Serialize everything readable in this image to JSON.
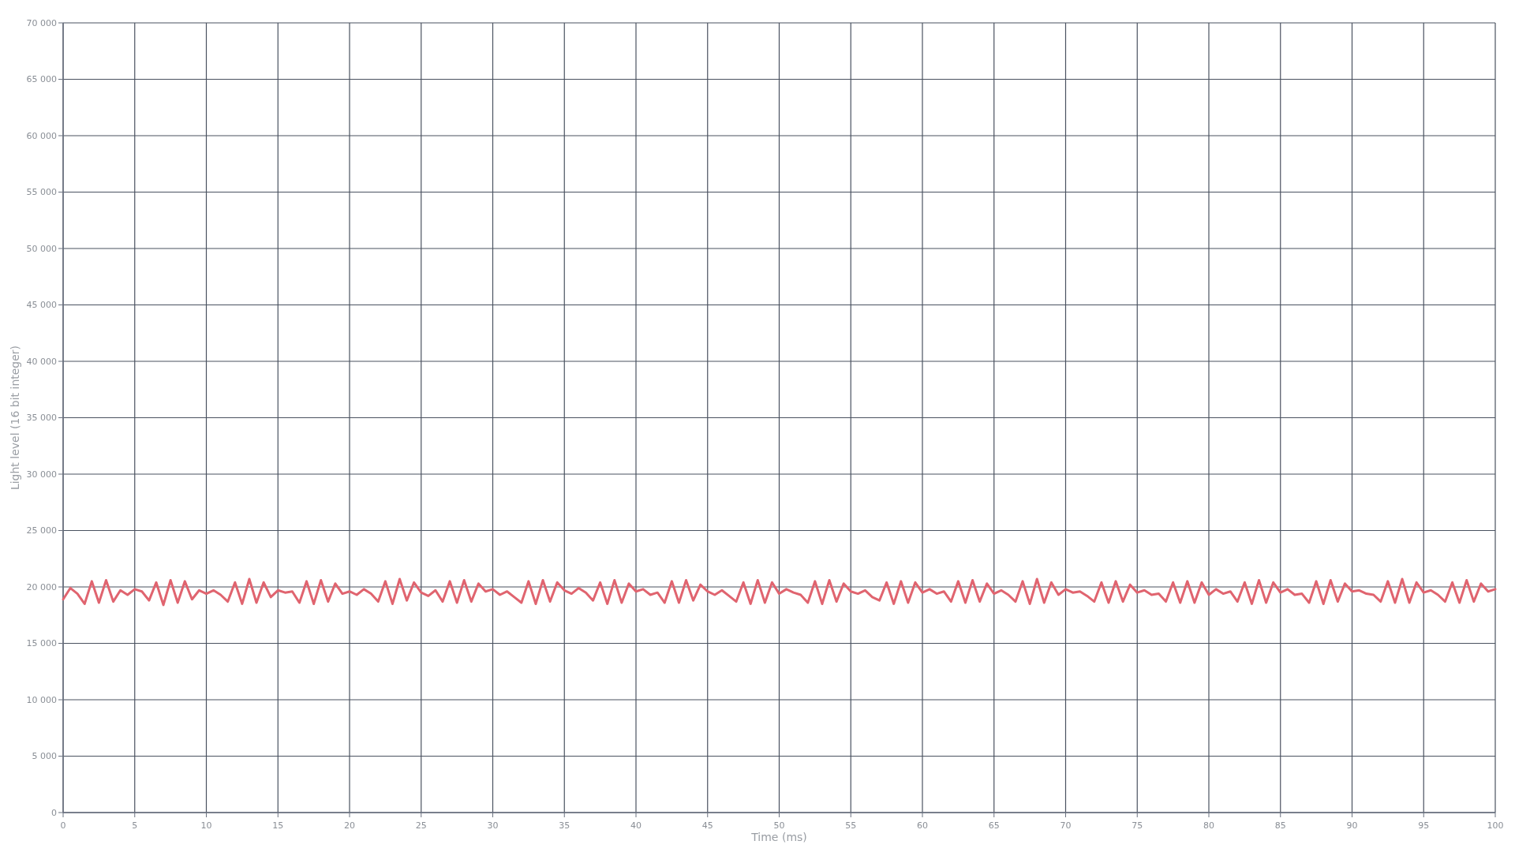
{
  "chart_data": {
    "type": "line",
    "xlabel": "Time (ms)",
    "ylabel": "Light level (16 bit integer)",
    "x": [
      0,
      0.5,
      1,
      1.5,
      2,
      2.5,
      3,
      3.5,
      4,
      4.5,
      5,
      5.5,
      6,
      6.5,
      7,
      7.5,
      8,
      8.5,
      9,
      9.5,
      10,
      10.5,
      11,
      11.5,
      12,
      12.5,
      13,
      13.5,
      14,
      14.5,
      15,
      15.5,
      16,
      16.5,
      17,
      17.5,
      18,
      18.5,
      19,
      19.5,
      20,
      20.5,
      21,
      21.5,
      22,
      22.5,
      23,
      23.5,
      24,
      24.5,
      25,
      25.5,
      26,
      26.5,
      27,
      27.5,
      28,
      28.5,
      29,
      29.5,
      30,
      30.5,
      31,
      31.5,
      32,
      32.5,
      33,
      33.5,
      34,
      34.5,
      35,
      35.5,
      36,
      36.5,
      37,
      37.5,
      38,
      38.5,
      39,
      39.5,
      40,
      40.5,
      41,
      41.5,
      42,
      42.5,
      43,
      43.5,
      44,
      44.5,
      45,
      45.5,
      46,
      46.5,
      47,
      47.5,
      48,
      48.5,
      49,
      49.5,
      50,
      50.5,
      51,
      51.5,
      52,
      52.5,
      53,
      53.5,
      54,
      54.5,
      55,
      55.5,
      56,
      56.5,
      57,
      57.5,
      58,
      58.5,
      59,
      59.5,
      60,
      60.5,
      61,
      61.5,
      62,
      62.5,
      63,
      63.5,
      64,
      64.5,
      65,
      65.5,
      66,
      66.5,
      67,
      67.5,
      68,
      68.5,
      69,
      69.5,
      70,
      70.5,
      71,
      71.5,
      72,
      72.5,
      73,
      73.5,
      74,
      74.5,
      75,
      75.5,
      76,
      76.5,
      77,
      77.5,
      78,
      78.5,
      79,
      79.5,
      80,
      80.5,
      81,
      81.5,
      82,
      82.5,
      83,
      83.5,
      84,
      84.5,
      85,
      85.5,
      86,
      86.5,
      87,
      87.5,
      88,
      88.5,
      89,
      89.5,
      90,
      90.5,
      91,
      91.5,
      92,
      92.5,
      93,
      93.5,
      94,
      94.5,
      95,
      95.5,
      96,
      96.5,
      97,
      97.5,
      98,
      98.5,
      99,
      99.5,
      100
    ],
    "series": [
      {
        "color": "#e0646f",
        "values": [
          18900,
          19900,
          19400,
          18500,
          20500,
          18600,
          20600,
          18700,
          19700,
          19300,
          19800,
          19600,
          18800,
          20400,
          18400,
          20600,
          18600,
          20500,
          18900,
          19700,
          19400,
          19700,
          19300,
          18700,
          20400,
          18500,
          20700,
          18600,
          20400,
          19100,
          19700,
          19500,
          19600,
          18600,
          20500,
          18500,
          20600,
          18700,
          20300,
          19400,
          19600,
          19300,
          19800,
          19400,
          18700,
          20500,
          18500,
          20700,
          18800,
          20400,
          19500,
          19200,
          19700,
          18700,
          20500,
          18600,
          20600,
          18700,
          20300,
          19600,
          19800,
          19300,
          19600,
          19100,
          18600,
          20500,
          18500,
          20600,
          18700,
          20400,
          19700,
          19400,
          19900,
          19500,
          18800,
          20400,
          18500,
          20600,
          18600,
          20300,
          19600,
          19800,
          19300,
          19500,
          18600,
          20500,
          18600,
          20600,
          18800,
          20200,
          19600,
          19300,
          19700,
          19200,
          18700,
          20400,
          18500,
          20600,
          18600,
          20400,
          19400,
          19800,
          19500,
          19300,
          18600,
          20500,
          18500,
          20600,
          18700,
          20300,
          19600,
          19400,
          19700,
          19100,
          18800,
          20400,
          18500,
          20500,
          18600,
          20400,
          19500,
          19800,
          19400,
          19600,
          18700,
          20500,
          18600,
          20600,
          18700,
          20300,
          19400,
          19700,
          19300,
          18700,
          20500,
          18500,
          20700,
          18600,
          20400,
          19300,
          19800,
          19500,
          19600,
          19200,
          18700,
          20400,
          18600,
          20500,
          18700,
          20200,
          19500,
          19700,
          19300,
          19400,
          18700,
          20400,
          18600,
          20500,
          18600,
          20400,
          19300,
          19800,
          19400,
          19600,
          18700,
          20400,
          18500,
          20600,
          18600,
          20400,
          19500,
          19800,
          19300,
          19400,
          18600,
          20500,
          18500,
          20600,
          18700,
          20300,
          19600,
          19700,
          19400,
          19300,
          18700,
          20500,
          18600,
          20700,
          18600,
          20400,
          19500,
          19700,
          19300,
          18700,
          20400,
          18600,
          20600,
          18700,
          20300,
          19600,
          19800
        ]
      }
    ],
    "xlim": [
      0,
      100
    ],
    "xticks": [
      0,
      5,
      10,
      15,
      20,
      25,
      30,
      35,
      40,
      45,
      50,
      55,
      60,
      65,
      70,
      75,
      80,
      85,
      90,
      95,
      100
    ],
    "ylim": [
      0,
      70000
    ],
    "yticks": [
      0,
      {
        "value": 5000,
        "label": "5 000"
      },
      {
        "value": 10000,
        "label": "10 000"
      },
      {
        "value": 15000,
        "label": "15 000"
      },
      {
        "value": 20000,
        "label": "20 000"
      },
      {
        "value": 25000,
        "label": "25 000"
      },
      {
        "value": 30000,
        "label": "30 000"
      },
      {
        "value": 35000,
        "label": "35 000"
      },
      {
        "value": 40000,
        "label": "40 000"
      },
      {
        "value": 45000,
        "label": "45 000"
      },
      {
        "value": 50000,
        "label": "50 000"
      },
      {
        "value": 55000,
        "label": "55 000"
      },
      {
        "value": 60000,
        "label": "60 000"
      },
      {
        "value": 65000,
        "label": "65 000"
      },
      {
        "value": 70000,
        "label": "70 000"
      }
    ],
    "grid": true,
    "marker": "none",
    "line_style": "solid"
  }
}
